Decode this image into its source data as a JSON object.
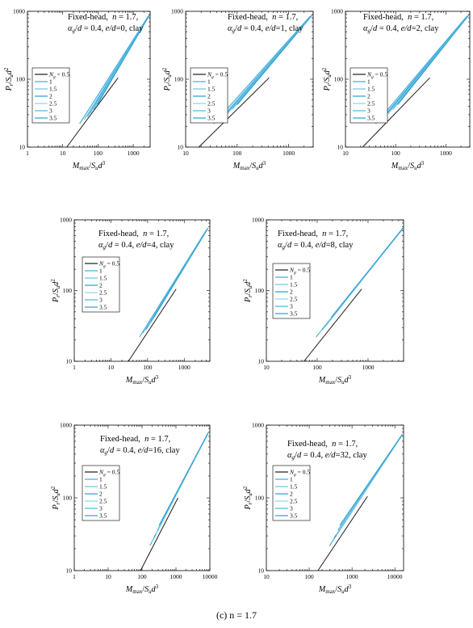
{
  "figure": {
    "caption": "(c)    n = 1.7"
  },
  "series_names": [
    "0.5",
    "1",
    "1.5",
    "2",
    "2.5",
    "3",
    "3.5"
  ],
  "series_colors": [
    "#1a1a1a",
    "#3fa9d6",
    "#6ec3e6",
    "#22a0d2",
    "#8fd0ec",
    "#4cb5df",
    "#2b9fd0"
  ],
  "panel_text": {
    "line1": "Fixed-head,  n = 1.7,",
    "legend_symbol": "Ng",
    "xlabel": "Mmax/Sud3",
    "ylabel": "Pr/Sud2"
  },
  "chart_data": [
    {
      "type": "line",
      "x_scale": "log",
      "y_scale": "log",
      "xlim": [
        1,
        3000
      ],
      "ylim": [
        10,
        1000
      ],
      "xticks": [
        "1",
        "10",
        "100",
        "1000"
      ],
      "yticks": [
        "10",
        "100",
        "1000"
      ],
      "annotation": "αg/d = 0.4, e/d=0, clay",
      "series": [
        {
          "name": "0.5",
          "points": [
            [
              13,
              10
            ],
            [
              370,
              105
            ]
          ]
        },
        {
          "name": "1",
          "points": [
            [
              30,
              22
            ],
            [
              2600,
              840
            ]
          ]
        },
        {
          "name": "1.5",
          "points": [
            [
              40,
              25
            ],
            [
              2700,
              850
            ]
          ]
        },
        {
          "name": "2",
          "points": [
            [
              50,
              28
            ],
            [
              2750,
              860
            ]
          ]
        },
        {
          "name": "2.5",
          "points": [
            [
              60,
              31
            ],
            [
              2800,
              870
            ]
          ]
        },
        {
          "name": "3",
          "points": [
            [
              75,
              36
            ],
            [
              2850,
              880
            ]
          ]
        },
        {
          "name": "3.5",
          "points": [
            [
              95,
              42
            ],
            [
              2900,
              890
            ]
          ]
        }
      ]
    },
    {
      "type": "line",
      "x_scale": "log",
      "y_scale": "log",
      "xlim": [
        10,
        3000
      ],
      "ylim": [
        10,
        1000
      ],
      "xticks": [
        "10",
        "100",
        "1000"
      ],
      "yticks": [
        "10",
        "100",
        "1000"
      ],
      "annotation": "αg/d = 0.4, e/d=1, clay",
      "series": [
        {
          "name": "0.5",
          "points": [
            [
              18,
              10
            ],
            [
              420,
              105
            ]
          ]
        },
        {
          "name": "1",
          "points": [
            [
              35,
              22
            ],
            [
              2600,
              840
            ]
          ]
        },
        {
          "name": "1.5",
          "points": [
            [
              45,
              25
            ],
            [
              2700,
              850
            ]
          ]
        },
        {
          "name": "2",
          "points": [
            [
              55,
              28
            ],
            [
              2750,
              860
            ]
          ]
        },
        {
          "name": "2.5",
          "points": [
            [
              65,
              31
            ],
            [
              2800,
              870
            ]
          ]
        },
        {
          "name": "3",
          "points": [
            [
              80,
              36
            ],
            [
              2850,
              880
            ]
          ]
        },
        {
          "name": "3.5",
          "points": [
            [
              100,
              42
            ],
            [
              2900,
              890
            ]
          ]
        }
      ]
    },
    {
      "type": "line",
      "x_scale": "log",
      "y_scale": "log",
      "xlim": [
        10,
        3000
      ],
      "ylim": [
        10,
        1000
      ],
      "xticks": [
        "10",
        "100",
        "1000"
      ],
      "yticks": [
        "10",
        "100",
        "1000"
      ],
      "annotation": "αg/d = 0.4, e/d=2, clay",
      "series": [
        {
          "name": "0.5",
          "points": [
            [
              22,
              10
            ],
            [
              480,
              105
            ]
          ]
        },
        {
          "name": "1",
          "points": [
            [
              40,
              22
            ],
            [
              2600,
              840
            ]
          ]
        },
        {
          "name": "1.5",
          "points": [
            [
              50,
              25
            ],
            [
              2700,
              850
            ]
          ]
        },
        {
          "name": "2",
          "points": [
            [
              60,
              28
            ],
            [
              2750,
              860
            ]
          ]
        },
        {
          "name": "2.5",
          "points": [
            [
              72,
              31
            ],
            [
              2800,
              870
            ]
          ]
        },
        {
          "name": "3",
          "points": [
            [
              88,
              36
            ],
            [
              2850,
              880
            ]
          ]
        },
        {
          "name": "3.5",
          "points": [
            [
              110,
              42
            ],
            [
              2900,
              890
            ]
          ]
        }
      ]
    },
    {
      "type": "line",
      "x_scale": "log",
      "y_scale": "log",
      "xlim": [
        1,
        5000
      ],
      "ylim": [
        10,
        1000
      ],
      "xticks": [
        "1",
        "10",
        "100",
        "1000"
      ],
      "yticks": [
        "10",
        "100",
        "1000"
      ],
      "annotation": "αg/d = 0.4, e/d=4, clay",
      "series": [
        {
          "name": "0.5",
          "points": [
            [
              30,
              10
            ],
            [
              600,
              105
            ]
          ]
        },
        {
          "name": "1",
          "points": [
            [
              60,
              22
            ],
            [
              4000,
              720
            ]
          ]
        },
        {
          "name": "1.5",
          "points": [
            [
              75,
              25
            ],
            [
              4100,
              730
            ]
          ]
        },
        {
          "name": "2",
          "points": [
            [
              90,
              28
            ],
            [
              4200,
              740
            ]
          ]
        },
        {
          "name": "2.5",
          "points": [
            [
              105,
              31
            ],
            [
              4300,
              750
            ]
          ]
        },
        {
          "name": "3",
          "points": [
            [
              125,
              36
            ],
            [
              4400,
              760
            ]
          ]
        },
        {
          "name": "3.5",
          "points": [
            [
              150,
              42
            ],
            [
              4500,
              770
            ]
          ]
        }
      ]
    },
    {
      "type": "line",
      "x_scale": "log",
      "y_scale": "log",
      "xlim": [
        10,
        5000
      ],
      "ylim": [
        10,
        1000
      ],
      "xticks": [
        "10",
        "100",
        "1000"
      ],
      "yticks": [
        "10",
        "100",
        "1000"
      ],
      "annotation": "αg/d = 0.4, e/d=8, clay",
      "series": [
        {
          "name": "0.5",
          "points": [
            [
              55,
              10
            ],
            [
              750,
              105
            ]
          ]
        },
        {
          "name": "1",
          "points": [
            [
              95,
              22
            ],
            [
              4600,
              720
            ]
          ]
        },
        {
          "name": "1.5",
          "points": [
            [
              110,
              25
            ],
            [
              4700,
              730
            ]
          ]
        },
        {
          "name": "2",
          "points": [
            [
              125,
              28
            ],
            [
              4750,
              740
            ]
          ]
        },
        {
          "name": "2.5",
          "points": [
            [
              145,
              31
            ],
            [
              4800,
              750
            ]
          ]
        },
        {
          "name": "3",
          "points": [
            [
              165,
              36
            ],
            [
              4850,
              760
            ]
          ]
        },
        {
          "name": "3.5",
          "points": [
            [
              190,
              42
            ],
            [
              4900,
              770
            ]
          ]
        }
      ]
    },
    {
      "type": "line",
      "x_scale": "log",
      "y_scale": "log",
      "xlim": [
        1,
        10000
      ],
      "ylim": [
        10,
        1000
      ],
      "xticks": [
        "1",
        "10",
        "100",
        "1000",
        "10000"
      ],
      "yticks": [
        "10",
        "100",
        "1000"
      ],
      "annotation": "αg/d = 0.4, e/d=16, clay",
      "series": [
        {
          "name": "0.5",
          "points": [
            [
              90,
              10
            ],
            [
              1150,
              100
            ]
          ]
        },
        {
          "name": "1",
          "points": [
            [
              170,
              22
            ],
            [
              8500,
              750
            ]
          ]
        },
        {
          "name": "1.5",
          "points": [
            [
              195,
              25
            ],
            [
              8700,
              760
            ]
          ]
        },
        {
          "name": "2",
          "points": [
            [
              220,
              28
            ],
            [
              8800,
              770
            ]
          ]
        },
        {
          "name": "2.5",
          "points": [
            [
              250,
              31
            ],
            [
              8900,
              780
            ]
          ]
        },
        {
          "name": "3",
          "points": [
            [
              285,
              36
            ],
            [
              9000,
              790
            ]
          ]
        },
        {
          "name": "3.5",
          "points": [
            [
              320,
              42
            ],
            [
              9100,
              800
            ]
          ]
        }
      ]
    },
    {
      "type": "line",
      "x_scale": "log",
      "y_scale": "log",
      "xlim": [
        10,
        16000
      ],
      "ylim": [
        10,
        1000
      ],
      "xticks": [
        "10",
        "100",
        "1000",
        "10000"
      ],
      "yticks": [
        "10",
        "100",
        "1000"
      ],
      "annotation": "αg/d = 0.4, e/d=32, clay",
      "series": [
        {
          "name": "0.5",
          "points": [
            [
              160,
              10
            ],
            [
              2300,
              105
            ]
          ]
        },
        {
          "name": "1",
          "points": [
            [
              300,
              22
            ],
            [
              14000,
              700
            ]
          ]
        },
        {
          "name": "1.5",
          "points": [
            [
              340,
              25
            ],
            [
              14300,
              710
            ]
          ]
        },
        {
          "name": "2",
          "points": [
            [
              380,
              28
            ],
            [
              14500,
              720
            ]
          ]
        },
        {
          "name": "2.5",
          "points": [
            [
              420,
              31
            ],
            [
              14700,
              730
            ]
          ]
        },
        {
          "name": "3",
          "points": [
            [
              470,
              36
            ],
            [
              14900,
              740
            ]
          ]
        },
        {
          "name": "3.5",
          "points": [
            [
              520,
              42
            ],
            [
              15000,
              750
            ]
          ]
        }
      ]
    }
  ]
}
